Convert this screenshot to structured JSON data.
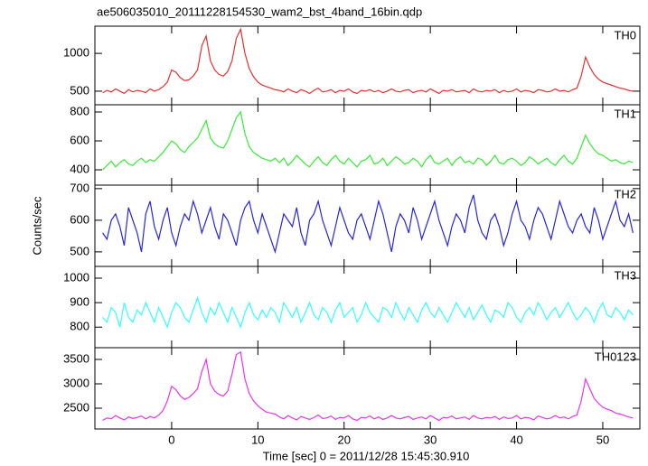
{
  "chart_data": {
    "type": "line",
    "title": "ae506035010_20111228154530_wam2_bst_4band_16bin.qdp",
    "xlabel": "Time [sec] 0 = 2011/12/28 15:45:30.910",
    "ylabel": "Counts/sec",
    "xlim": [
      -8.9,
      54.3
    ],
    "xticks": [
      0,
      10,
      20,
      30,
      40,
      50
    ],
    "x": [
      -8,
      -7.5,
      -7,
      -6.5,
      -6,
      -5.5,
      -5,
      -4.5,
      -4,
      -3.5,
      -3,
      -2.5,
      -2,
      -1.5,
      -1,
      -0.5,
      0,
      0.5,
      1,
      1.5,
      2,
      2.5,
      3,
      3.5,
      4,
      4.5,
      5,
      5.5,
      6,
      6.5,
      7,
      7.5,
      8,
      8.5,
      9,
      9.5,
      10,
      10.5,
      11,
      11.5,
      12,
      12.5,
      13,
      13.5,
      14,
      14.5,
      15,
      15.5,
      16,
      16.5,
      17,
      17.5,
      18,
      18.5,
      19,
      19.5,
      20,
      20.5,
      21,
      21.5,
      22,
      22.5,
      23,
      23.5,
      24,
      24.5,
      25,
      25.5,
      26,
      26.5,
      27,
      27.5,
      28,
      28.5,
      29,
      29.5,
      30,
      30.5,
      31,
      31.5,
      32,
      32.5,
      33,
      33.5,
      34,
      34.5,
      35,
      35.5,
      36,
      36.5,
      37,
      37.5,
      38,
      38.5,
      39,
      39.5,
      40,
      40.5,
      41,
      41.5,
      42,
      42.5,
      43,
      43.5,
      44,
      44.5,
      45,
      45.5,
      46,
      46.5,
      47,
      47.5,
      48,
      48.5,
      49,
      49.5,
      50,
      50.5,
      51,
      51.5,
      52,
      52.5,
      53,
      53.5
    ],
    "series": [
      {
        "name": "TH0",
        "color": "#e8302f",
        "ylim": [
          320,
          1360
        ],
        "yticks": [
          500,
          1000
        ],
        "values": [
          480,
          510,
          490,
          530,
          500,
          470,
          520,
          490,
          510,
          500,
          480,
          530,
          500,
          520,
          560,
          620,
          780,
          750,
          680,
          640,
          650,
          700,
          780,
          1100,
          1230,
          900,
          780,
          720,
          700,
          760,
          900,
          1200,
          1320,
          1000,
          800,
          690,
          620,
          580,
          560,
          540,
          520,
          510,
          490,
          530,
          500,
          480,
          520,
          500,
          470,
          510,
          540,
          490,
          500,
          520,
          480,
          510,
          500,
          530,
          490,
          470,
          510,
          500,
          520,
          490,
          510,
          480,
          500,
          530,
          500,
          490,
          510,
          520,
          480,
          500,
          510,
          490,
          530,
          500,
          470,
          510,
          500,
          520,
          490,
          500,
          510,
          480,
          530,
          500,
          490,
          510,
          500,
          520,
          480,
          510,
          490,
          500,
          530,
          490,
          510,
          500,
          480,
          520,
          510,
          490,
          500,
          530,
          500,
          510,
          490,
          520,
          540,
          700,
          950,
          820,
          720,
          660,
          620,
          600,
          580,
          560,
          540,
          530,
          510,
          500
        ]
      },
      {
        "name": "TH1",
        "color": "#33ee33",
        "ylim": [
          294,
          850
        ],
        "yticks": [
          400,
          600,
          800
        ],
        "values": [
          400,
          430,
          460,
          420,
          450,
          470,
          440,
          430,
          460,
          480,
          450,
          470,
          460,
          490,
          520,
          560,
          600,
          580,
          540,
          520,
          560,
          590,
          620,
          680,
          740,
          620,
          580,
          560,
          550,
          600,
          680,
          760,
          800,
          650,
          560,
          520,
          500,
          480,
          470,
          460,
          480,
          450,
          480,
          430,
          460,
          500,
          470,
          440,
          420,
          460,
          490,
          450,
          430,
          470,
          500,
          460,
          440,
          480,
          450,
          420,
          460,
          470,
          500,
          440,
          450,
          480,
          430,
          460,
          490,
          470,
          440,
          450,
          480,
          460,
          420,
          470,
          500,
          450,
          440,
          460,
          480,
          430,
          470,
          490,
          450,
          460,
          440,
          480,
          470,
          430,
          460,
          500,
          450,
          440,
          470,
          480,
          460,
          430,
          450,
          490,
          470,
          440,
          460,
          480,
          450,
          430,
          470,
          500,
          460,
          440,
          480,
          560,
          640,
          580,
          540,
          510,
          500,
          480,
          460,
          470,
          450,
          440,
          460,
          450
        ]
      },
      {
        "name": "TH2",
        "color": "#2626e6",
        "ylim": [
          454,
          711
        ],
        "yticks": [
          500,
          600,
          700
        ],
        "values": [
          560,
          540,
          600,
          620,
          580,
          520,
          640,
          600,
          560,
          500,
          620,
          660,
          580,
          540,
          600,
          640,
          560,
          520,
          580,
          620,
          600,
          660,
          620,
          560,
          600,
          640,
          580,
          540,
          620,
          600,
          560,
          520,
          600,
          640,
          660,
          600,
          560,
          620,
          580,
          540,
          500,
          560,
          620,
          600,
          580,
          640,
          560,
          520,
          600,
          620,
          660,
          600,
          560,
          520,
          580,
          640,
          600,
          560,
          540,
          600,
          620,
          580,
          540,
          600,
          660,
          620,
          560,
          500,
          580,
          620,
          600,
          560,
          640,
          600,
          540,
          580,
          620,
          660,
          600,
          560,
          520,
          580,
          620,
          600,
          560,
          640,
          680,
          600,
          560,
          540,
          600,
          620,
          580,
          520,
          560,
          620,
          660,
          600,
          580,
          540,
          600,
          640,
          620,
          580,
          540,
          600,
          660,
          620,
          580,
          560,
          600,
          620,
          580,
          560,
          640,
          600,
          540,
          580,
          620,
          660,
          600,
          580,
          620,
          560
        ]
      },
      {
        "name": "TH3",
        "color": "#33ffff",
        "ylim": [
          716,
          1048
        ],
        "yticks": [
          800,
          900,
          1000
        ],
        "values": [
          840,
          820,
          880,
          860,
          800,
          900,
          840,
          820,
          870,
          850,
          900,
          860,
          820,
          880,
          840,
          800,
          860,
          900,
          880,
          840,
          820,
          870,
          920,
          860,
          820,
          880,
          850,
          900,
          860,
          820,
          880,
          840,
          800,
          860,
          900,
          850,
          830,
          870,
          840,
          880,
          860,
          820,
          900,
          870,
          840,
          880,
          820,
          860,
          900,
          850,
          830,
          880,
          860,
          820,
          870,
          900,
          840,
          860,
          880,
          820,
          850,
          900,
          860,
          840,
          820,
          880,
          870,
          840,
          900,
          860,
          830,
          880,
          850,
          820,
          870,
          900,
          860,
          840,
          880,
          850,
          820,
          860,
          900,
          870,
          840,
          880,
          830,
          860,
          890,
          850,
          820,
          870,
          860,
          840,
          900,
          880,
          840,
          820,
          860,
          880,
          850,
          900,
          870,
          830,
          860,
          880,
          840,
          870,
          900,
          860,
          830,
          850,
          880,
          860,
          820,
          870,
          900,
          850,
          840,
          880,
          860,
          830,
          870,
          850
        ]
      },
      {
        "name": "TH0123",
        "color": "#ee33ee",
        "ylim": [
          2074,
          3741
        ],
        "yticks": [
          2500,
          3000,
          3500
        ],
        "values": [
          2250,
          2300,
          2280,
          2350,
          2300,
          2260,
          2320,
          2290,
          2310,
          2340,
          2280,
          2330,
          2300,
          2360,
          2450,
          2650,
          2950,
          2880,
          2750,
          2680,
          2720,
          2800,
          2900,
          3250,
          3500,
          3000,
          2850,
          2780,
          2750,
          2850,
          3200,
          3600,
          3650,
          3100,
          2800,
          2650,
          2550,
          2480,
          2420,
          2400,
          2380,
          2320,
          2280,
          2350,
          2300,
          2260,
          2330,
          2300,
          2270,
          2310,
          2360,
          2290,
          2300,
          2340,
          2270,
          2310,
          2300,
          2350,
          2280,
          2250,
          2310,
          2300,
          2340,
          2280,
          2320,
          2270,
          2300,
          2350,
          2300,
          2280,
          2310,
          2330,
          2270,
          2300,
          2320,
          2280,
          2350,
          2300,
          2250,
          2310,
          2300,
          2340,
          2280,
          2300,
          2320,
          2270,
          2350,
          2300,
          2280,
          2310,
          2300,
          2330,
          2270,
          2320,
          2290,
          2300,
          2350,
          2280,
          2310,
          2300,
          2260,
          2340,
          2310,
          2280,
          2300,
          2350,
          2300,
          2320,
          2280,
          2330,
          2360,
          2650,
          3100,
          2900,
          2700,
          2600,
          2520,
          2480,
          2450,
          2400,
          2380,
          2350,
          2320,
          2300
        ]
      }
    ]
  }
}
